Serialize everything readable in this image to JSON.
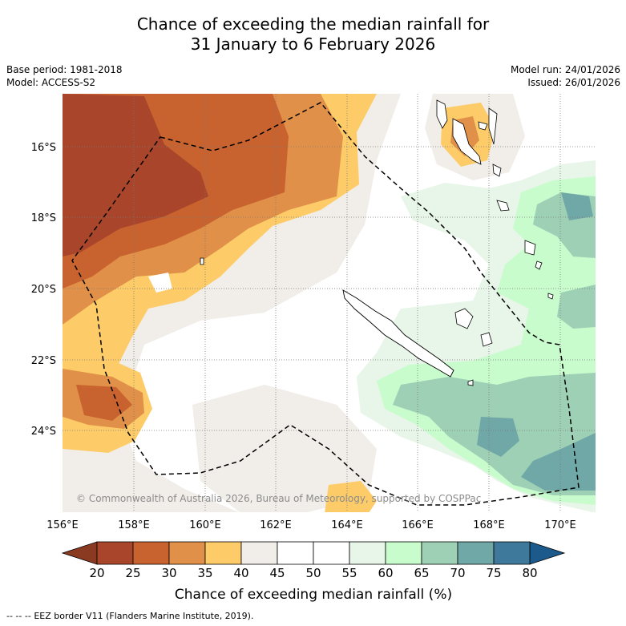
{
  "title": {
    "line1": "Chance of exceeding the median rainfall for",
    "line2": "31 January to 6 February 2026"
  },
  "meta": {
    "base_period": "Base period: 1981-2018",
    "model": "Model: ACCESS-S2",
    "model_run": "Model run: 24/01/2026",
    "issued": "Issued: 26/01/2026"
  },
  "map": {
    "lon_range": [
      156,
      171
    ],
    "lat_range": [
      -26.5,
      -14.7
    ],
    "lon_ticks": [
      "156°E",
      "158°E",
      "160°E",
      "162°E",
      "164°E",
      "166°E",
      "168°E",
      "170°E"
    ],
    "lat_ticks": [
      "16°S",
      "18°S",
      "20°S",
      "22°S",
      "24°S"
    ],
    "copyright": "© Commonwealth of Australia 2026, Bureau of Meteorology, supported by COSPPac"
  },
  "colorbar": {
    "label": "Chance of exceeding median rainfall (%)",
    "ticks": [
      "20",
      "25",
      "30",
      "35",
      "40",
      "45",
      "50",
      "55",
      "60",
      "65",
      "70",
      "75",
      "80"
    ],
    "colors": [
      "#a8452a",
      "#c8632f",
      "#e09048",
      "#fdcc68",
      "#f1ede8",
      "#ffffff",
      "#ffffff",
      "#e8f5e9",
      "#c8fccc",
      "#9ed0b6",
      "#6fa8a6",
      "#3e789a"
    ],
    "under_color": "#8b3a22",
    "over_color": "#1b5a8a"
  },
  "footer": {
    "legend_symbol": "-- -- --",
    "legend_text": "EEZ border V11 (Flanders Marine Institute, 2019)."
  }
}
